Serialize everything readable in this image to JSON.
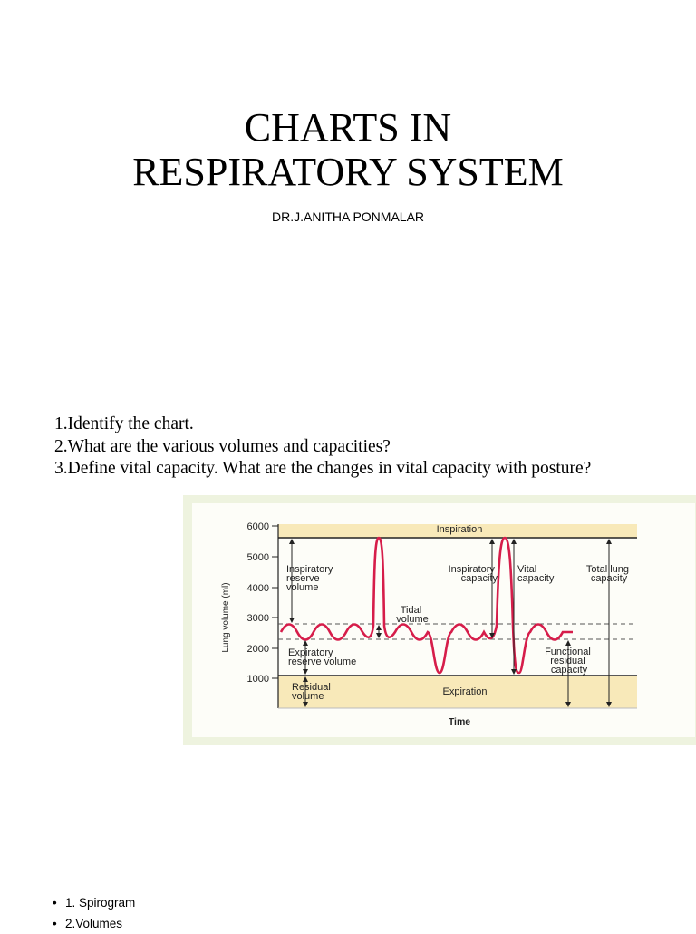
{
  "header": {
    "title_lines": [
      "CHARTS IN",
      "RESPIRATORY SYSTEM"
    ],
    "author": "DR.J.ANITHA PONMALAR"
  },
  "questions": [
    "1.Identify the chart.",
    "2.What are the various volumes and capacities?",
    "3.Define vital capacity. What are the changes in vital capacity with posture?"
  ],
  "figure": {
    "y_axis_label": "Lung volume (ml)",
    "x_axis_label": "Time",
    "y_tick_labels": [
      "6000",
      "5000",
      "4000",
      "3000",
      "2000",
      "1000"
    ],
    "labels": {
      "inspiration": "Inspiration",
      "inspiratory_reserve_volume": [
        "Inspiratory",
        "reserve",
        "volume"
      ],
      "tidal_volume": [
        "Tidal",
        "volume"
      ],
      "inspiratory_capacity": [
        "Inspiratory",
        "capacity"
      ],
      "vital_capacity": [
        "Vital",
        "capacity"
      ],
      "total_lung_capacity": [
        "Total lung",
        "capacity"
      ],
      "expiratory_reserve_volume": [
        "Expiratory",
        "reserve volume"
      ],
      "functional_residual_capacity": [
        "Functional",
        "residual",
        "capacity"
      ],
      "residual_volume": [
        "Residual",
        "volume"
      ],
      "expiration": "Expiration"
    }
  },
  "bullets": [
    {
      "text": "1. Spirogram"
    },
    {
      "text": "2.",
      "link": "Volumes"
    }
  ]
}
